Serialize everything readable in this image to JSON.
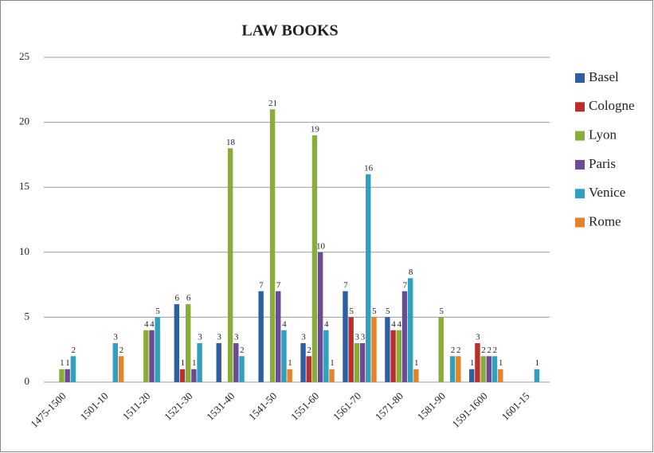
{
  "chart_data": {
    "type": "bar",
    "title": "LAW BOOKS",
    "categories": [
      "1475-1500",
      "1501-10",
      "1511-20",
      "1521-30",
      "1531-40",
      "1541-50",
      "1551-60",
      "1561-70",
      "1571-80",
      "1581-90",
      "1591-1600",
      "1601-15"
    ],
    "series": [
      {
        "name": "Basel",
        "color": "#2e5fa3",
        "values": [
          null,
          null,
          null,
          6,
          3,
          7,
          3,
          7,
          5,
          null,
          1,
          null
        ]
      },
      {
        "name": "Cologne",
        "color": "#b8302d",
        "values": [
          null,
          null,
          null,
          1,
          null,
          null,
          2,
          5,
          4,
          null,
          3,
          null
        ]
      },
      {
        "name": "Lyon",
        "color": "#8aac3c",
        "values": [
          1,
          null,
          4,
          6,
          18,
          21,
          19,
          3,
          4,
          5,
          2,
          null
        ]
      },
      {
        "name": "Paris",
        "color": "#6d4b94",
        "values": [
          1,
          null,
          4,
          1,
          3,
          7,
          10,
          3,
          7,
          null,
          2,
          null
        ]
      },
      {
        "name": "Venice",
        "color": "#2fa0bd",
        "values": [
          2,
          3,
          5,
          3,
          2,
          4,
          4,
          16,
          8,
          2,
          2,
          1
        ]
      },
      {
        "name": "Rome",
        "color": "#e6822a",
        "values": [
          null,
          2,
          null,
          null,
          null,
          1,
          1,
          5,
          1,
          2,
          1,
          null
        ]
      }
    ],
    "ylim": [
      0,
      25
    ],
    "yticks": [
      0,
      5,
      10,
      15,
      20,
      25
    ],
    "grid": true,
    "legend": "right"
  }
}
